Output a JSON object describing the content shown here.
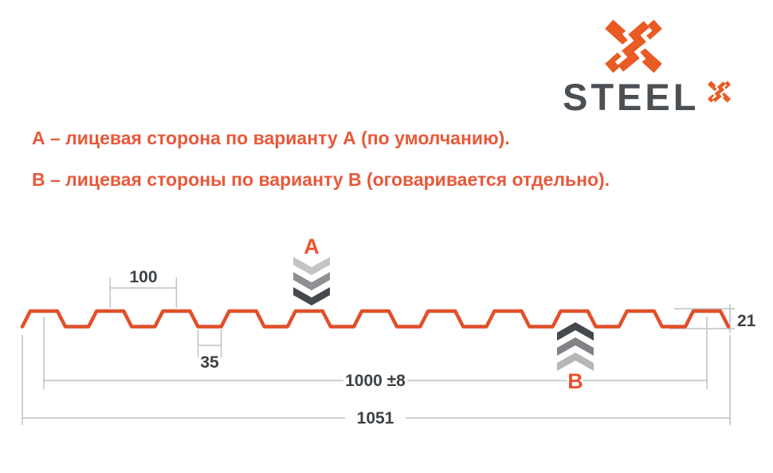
{
  "brand": {
    "name": "STEEL",
    "sup": "X",
    "icons": {
      "logo_mark": "x-with-s-monogram-icon",
      "sup_mark": "small-x-monogram-icon"
    }
  },
  "notes": [
    {
      "text": "А – лицевая сторона по варианту А (по умолчанию)."
    },
    {
      "text": "В – лицевая стороны по варианту В (оговаривается отдельно)."
    }
  ],
  "diagram": {
    "type": "corrugated-sheet-profile-cross-section",
    "dimensions": {
      "crest_pitch": "100",
      "valley_width": "35",
      "working_width": "1000 ±8",
      "overall_width": "1051",
      "profile_height": "21"
    },
    "sides": {
      "front_label": "А",
      "back_label": "В",
      "front_arrow_icon": "triple-chevron-down-icon",
      "back_arrow_icon": "triple-chevron-up-icon"
    },
    "colors": {
      "accent_orange": "#e14f28",
      "logo_orange": "#e95b24",
      "note_text_orange": "#e8583a",
      "label_dark": "#3d4247",
      "logo_text_dark": "#4a4f54",
      "dim_line_gray": "#bfc1c3",
      "chevron_a": [
        "#c3c4c6",
        "#8e9093",
        "#45484c"
      ],
      "chevron_b": [
        "#45484c",
        "#808285",
        "#b5b6b8"
      ]
    }
  }
}
